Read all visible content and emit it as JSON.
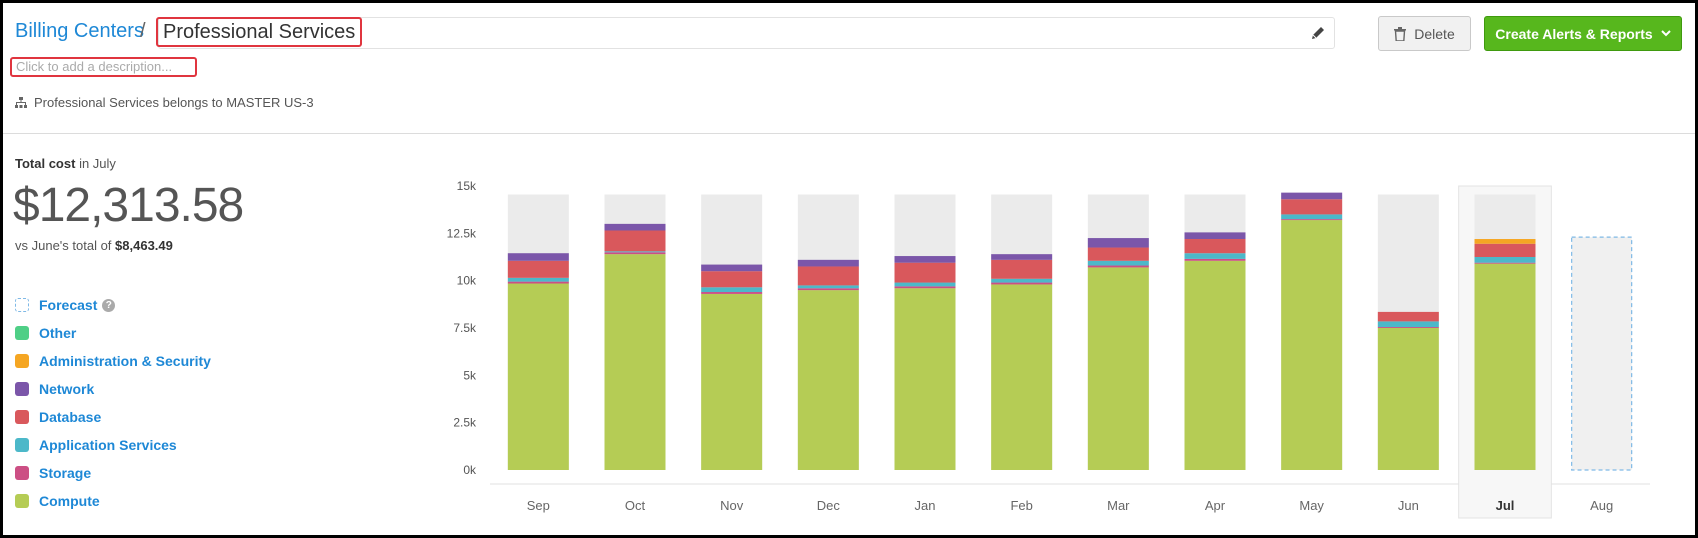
{
  "header": {
    "breadcrumb_link": "Billing Centers",
    "breadcrumb_sep": "/",
    "title": "Professional Services",
    "description_placeholder": "Click to add a description...",
    "belongs_to": "Professional Services belongs to MASTER US-3",
    "delete_label": "Delete",
    "create_label": "Create Alerts & Reports"
  },
  "summary": {
    "total_label": "Total cost",
    "total_period": "in July",
    "total_amount": "$12,313.58",
    "vs_prefix": "vs June's total of",
    "vs_amount": "$8,463.49"
  },
  "legend": [
    {
      "key": "forecast",
      "label": "Forecast",
      "color": "#7fb9e6",
      "dashed": true,
      "help": "?"
    },
    {
      "key": "other",
      "label": "Other",
      "color": "#4fcf86"
    },
    {
      "key": "admin",
      "label": "Administration & Security",
      "color": "#f5a623"
    },
    {
      "key": "network",
      "label": "Network",
      "color": "#7b56a9"
    },
    {
      "key": "database",
      "label": "Database",
      "color": "#d9585c"
    },
    {
      "key": "app",
      "label": "Application Services",
      "color": "#4cb8c9"
    },
    {
      "key": "storage",
      "label": "Storage",
      "color": "#cc4f84"
    },
    {
      "key": "compute",
      "label": "Compute",
      "color": "#b5cc55"
    }
  ],
  "chart_data": {
    "type": "bar",
    "stacked": true,
    "ylim": [
      0,
      15000
    ],
    "yticks": [
      "0k",
      "2.5k",
      "5k",
      "7.5k",
      "10k",
      "12.5k",
      "15k"
    ],
    "ytick_values": [
      0,
      2500,
      5000,
      7500,
      10000,
      12500,
      15000
    ],
    "categories": [
      "Sep",
      "Oct",
      "Nov",
      "Dec",
      "Jan",
      "Feb",
      "Mar",
      "Apr",
      "May",
      "Jun",
      "Jul",
      "Aug"
    ],
    "selected": "Jul",
    "background_max": 14550,
    "series": [
      {
        "name": "Compute",
        "color": "#b5cc55",
        "values": [
          9850,
          11400,
          9300,
          9500,
          9600,
          9800,
          10700,
          11050,
          13200,
          7500,
          10900,
          0
        ]
      },
      {
        "name": "Storage",
        "color": "#cc4f84",
        "values": [
          100,
          100,
          100,
          100,
          100,
          100,
          100,
          100,
          50,
          50,
          50,
          0
        ]
      },
      {
        "name": "Application Services",
        "color": "#4cb8c9",
        "values": [
          200,
          50,
          250,
          150,
          200,
          200,
          250,
          300,
          250,
          300,
          300,
          0
        ]
      },
      {
        "name": "Database",
        "color": "#d9585c",
        "values": [
          900,
          1100,
          850,
          1000,
          1050,
          1000,
          700,
          750,
          800,
          500,
          700,
          0
        ]
      },
      {
        "name": "Network",
        "color": "#7b56a9",
        "values": [
          400,
          350,
          350,
          350,
          350,
          300,
          500,
          350,
          350,
          0,
          0,
          0
        ]
      },
      {
        "name": "Administration & Security",
        "color": "#f5a623",
        "values": [
          0,
          0,
          0,
          0,
          0,
          0,
          0,
          0,
          0,
          0,
          250,
          0
        ]
      },
      {
        "name": "Forecast",
        "color": "#7fb9e6",
        "values": [
          0,
          0,
          0,
          0,
          0,
          0,
          0,
          0,
          0,
          0,
          0,
          12300
        ]
      }
    ]
  },
  "colors": {
    "link": "#1e88d6",
    "highlight": "#e0353f",
    "primary_button": "#57b71d"
  }
}
